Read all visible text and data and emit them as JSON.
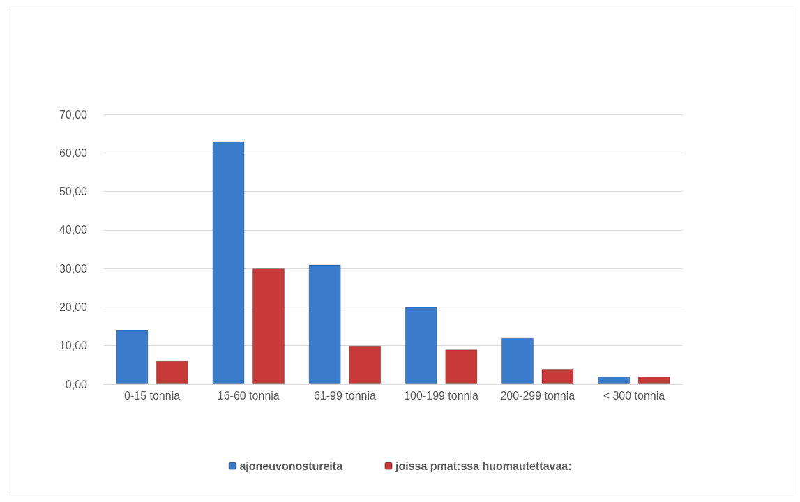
{
  "chart_data": {
    "type": "bar",
    "categories": [
      "0-15 tonnia",
      "16-60 tonnia",
      "61-99 tonnia",
      "100-199 tonnia",
      "200-299 tonnia",
      "< 300 tonnia"
    ],
    "series": [
      {
        "name": "ajoneuvonostureita",
        "color": "#3a7bcc",
        "values": [
          14,
          63,
          31,
          20,
          12,
          2
        ]
      },
      {
        "name": "joissa pmat:ssa huomautettavaa:",
        "color": "#c93a3a",
        "values": [
          6,
          30,
          10,
          9,
          4,
          2
        ]
      }
    ],
    "ylim": [
      0,
      70
    ],
    "yticks": [
      {
        "value": 0,
        "label": "0,00"
      },
      {
        "value": 10,
        "label": "10,00"
      },
      {
        "value": 20,
        "label": "20,00"
      },
      {
        "value": 30,
        "label": "30,00"
      },
      {
        "value": 40,
        "label": "40,00"
      },
      {
        "value": 50,
        "label": "50,00"
      },
      {
        "value": 60,
        "label": "60,00"
      },
      {
        "value": 70,
        "label": "70,00"
      }
    ],
    "grid": "y",
    "legend": "bottom"
  }
}
